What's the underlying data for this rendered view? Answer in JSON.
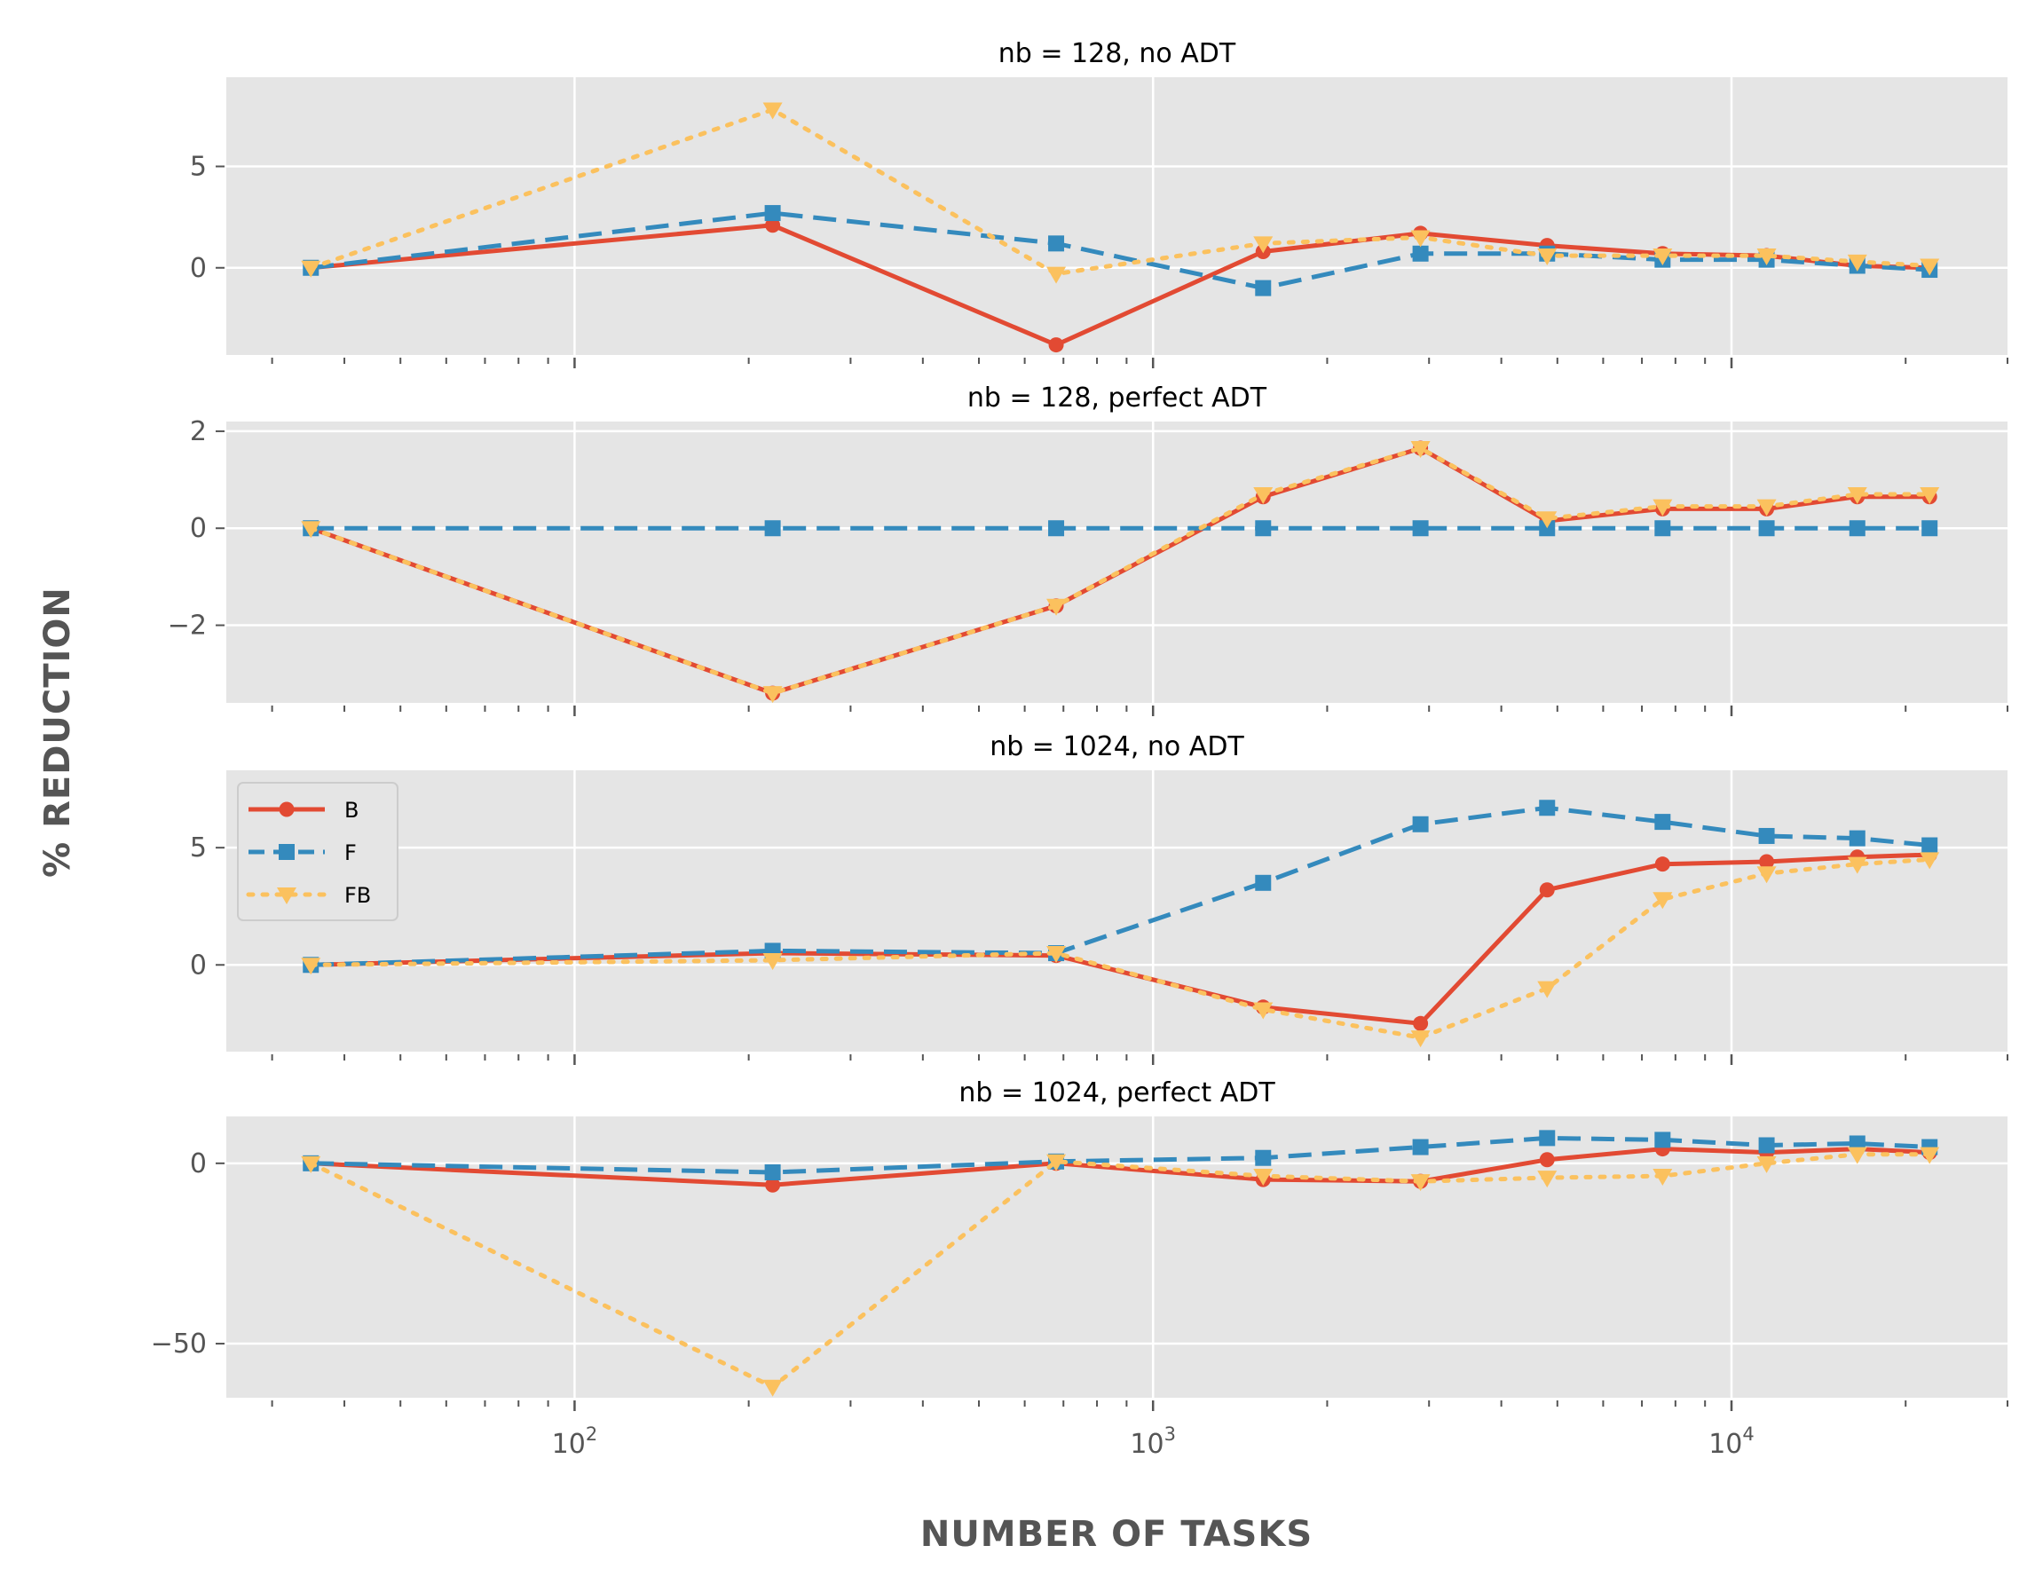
{
  "chart_data": [
    {
      "type": "line",
      "title": "nb = 128, no ADT",
      "x_scale": "log",
      "xlim": [
        25,
        30000
      ],
      "ylim": [
        -4.3,
        9.4
      ],
      "yticks": [
        {
          "value": 0,
          "label": "0"
        },
        {
          "value": 5,
          "label": "5"
        }
      ],
      "x": [
        35,
        220,
        680,
        1550,
        2900,
        4800,
        7600,
        11500,
        16500,
        22000
      ],
      "series": [
        {
          "name": "B",
          "color": "#E24A33",
          "marker": "circle",
          "dash": "solid",
          "values": [
            0.0,
            2.1,
            -3.8,
            0.8,
            1.7,
            1.1,
            0.7,
            0.6,
            0.1,
            0.0
          ]
        },
        {
          "name": "F",
          "color": "#348ABD",
          "marker": "square",
          "dash": "dashed",
          "values": [
            0.0,
            2.7,
            1.2,
            -1.0,
            0.7,
            0.7,
            0.4,
            0.4,
            0.1,
            -0.1
          ]
        },
        {
          "name": "FB",
          "color": "#FBC15E",
          "marker": "triangle-down",
          "dash": "dotted",
          "values": [
            0.0,
            7.8,
            -0.3,
            1.2,
            1.5,
            0.6,
            0.6,
            0.6,
            0.3,
            0.1
          ]
        }
      ]
    },
    {
      "type": "line",
      "title": "nb = 128, perfect ADT",
      "x_scale": "log",
      "xlim": [
        25,
        30000
      ],
      "ylim": [
        -3.6,
        2.2
      ],
      "yticks": [
        {
          "value": -2,
          "label": "−2"
        },
        {
          "value": 0,
          "label": "0"
        },
        {
          "value": 2,
          "label": "2"
        }
      ],
      "x": [
        35,
        220,
        680,
        1550,
        2900,
        4800,
        7600,
        11500,
        16500,
        22000
      ],
      "series": [
        {
          "name": "B",
          "color": "#E24A33",
          "marker": "circle",
          "dash": "solid",
          "values": [
            0.0,
            -3.4,
            -1.6,
            0.65,
            1.65,
            0.15,
            0.4,
            0.4,
            0.65,
            0.65
          ]
        },
        {
          "name": "F",
          "color": "#348ABD",
          "marker": "square",
          "dash": "dashed",
          "values": [
            0.0,
            0.0,
            0.0,
            0.0,
            0.0,
            0.0,
            0.0,
            0.0,
            0.0,
            0.0
          ]
        },
        {
          "name": "FB",
          "color": "#FBC15E",
          "marker": "triangle-down",
          "dash": "dotted",
          "values": [
            0.0,
            -3.4,
            -1.6,
            0.7,
            1.65,
            0.2,
            0.45,
            0.45,
            0.7,
            0.7
          ]
        }
      ]
    },
    {
      "type": "line",
      "title": "nb = 1024, no ADT",
      "x_scale": "log",
      "xlim": [
        25,
        30000
      ],
      "ylim": [
        -3.7,
        8.3
      ],
      "yticks": [
        {
          "value": 0,
          "label": "0"
        },
        {
          "value": 5,
          "label": "5"
        }
      ],
      "x": [
        35,
        220,
        680,
        1550,
        2900,
        4800,
        7600,
        11500,
        16500,
        22000
      ],
      "legend": {
        "position": "upper-left"
      },
      "series": [
        {
          "name": "B",
          "color": "#E24A33",
          "marker": "circle",
          "dash": "solid",
          "values": [
            0.0,
            0.5,
            0.4,
            -1.8,
            -2.5,
            3.2,
            4.3,
            4.4,
            4.6,
            4.7
          ]
        },
        {
          "name": "F",
          "color": "#348ABD",
          "marker": "square",
          "dash": "dashed",
          "values": [
            0.0,
            0.6,
            0.5,
            3.5,
            6.0,
            6.7,
            6.1,
            5.5,
            5.4,
            5.1
          ]
        },
        {
          "name": "FB",
          "color": "#FBC15E",
          "marker": "triangle-down",
          "dash": "dotted",
          "values": [
            0.0,
            0.2,
            0.5,
            -1.9,
            -3.1,
            -1.0,
            2.8,
            3.9,
            4.3,
            4.5
          ]
        }
      ]
    },
    {
      "type": "line",
      "title": "nb = 1024, perfect ADT",
      "x_scale": "log",
      "xlim": [
        25,
        30000
      ],
      "ylim": [
        -65,
        13
      ],
      "yticks": [
        {
          "value": -50,
          "label": "−50"
        },
        {
          "value": 0,
          "label": "0"
        }
      ],
      "x": [
        35,
        220,
        680,
        1550,
        2900,
        4800,
        7600,
        11500,
        16500,
        22000
      ],
      "xticks": [
        {
          "value": 100,
          "base": "10",
          "exp": "2"
        },
        {
          "value": 1000,
          "base": "10",
          "exp": "3"
        },
        {
          "value": 10000,
          "base": "10",
          "exp": "4"
        }
      ],
      "xlabel": "NUMBER OF TASKS",
      "series": [
        {
          "name": "B",
          "color": "#E24A33",
          "marker": "circle",
          "dash": "solid",
          "values": [
            0.0,
            -6.0,
            0.0,
            -4.5,
            -5.0,
            1.0,
            4.0,
            3.0,
            4.0,
            3.0
          ]
        },
        {
          "name": "F",
          "color": "#348ABD",
          "marker": "square",
          "dash": "dashed",
          "values": [
            0.0,
            -2.5,
            0.5,
            1.5,
            4.5,
            7.0,
            6.5,
            5.0,
            5.5,
            4.5
          ]
        },
        {
          "name": "FB",
          "color": "#FBC15E",
          "marker": "triangle-down",
          "dash": "dotted",
          "values": [
            0.0,
            -62.0,
            0.5,
            -3.5,
            -5.0,
            -4.0,
            -3.5,
            0.0,
            2.5,
            2.5
          ]
        }
      ]
    }
  ],
  "ylabel": "% REDUCTION",
  "xlabel": "NUMBER OF TASKS",
  "legend": {
    "entries": [
      {
        "label": "B"
      },
      {
        "label": "F"
      },
      {
        "label": "FB"
      }
    ]
  },
  "colors": {
    "background": "#E5E5E5",
    "grid": "#FFFFFF",
    "text": "#555555"
  }
}
